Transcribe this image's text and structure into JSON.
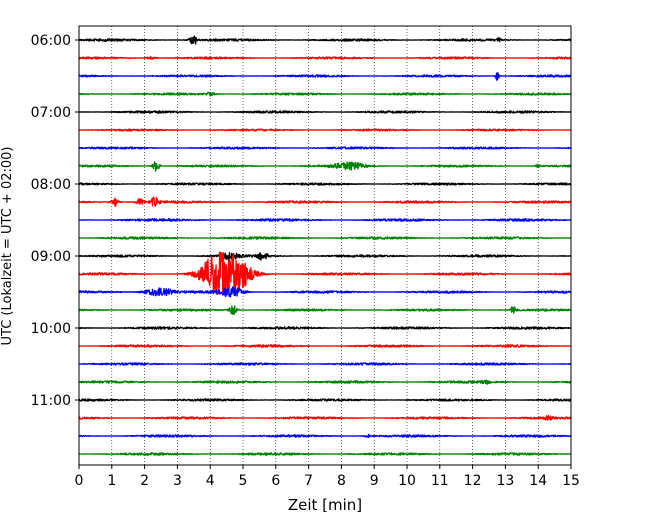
{
  "chart_data": {
    "type": "line",
    "xlabel": "Zeit  [min]",
    "ylabel": "UTC (Lokalzeit = UTC + 02:00)",
    "xlim": [
      0,
      15
    ],
    "x_ticks": [
      0,
      1,
      2,
      3,
      4,
      5,
      6,
      7,
      8,
      9,
      10,
      11,
      12,
      13,
      14,
      15
    ],
    "x_tick_labels": [
      "0",
      "1",
      "2",
      "3",
      "4",
      "5",
      "6",
      "7",
      "8",
      "9",
      "10",
      "11",
      "12",
      "13",
      "14",
      "15"
    ],
    "grid": {
      "x": true,
      "style": "dotted"
    },
    "y_tick_labels": [
      "06:00",
      "07:00",
      "08:00",
      "09:00",
      "10:00",
      "11:00"
    ],
    "trace_interval_minutes": 15,
    "first_trace_start": "06:00",
    "color_cycle": [
      "#000000",
      "#ff0000",
      "#0000ff",
      "#008000"
    ],
    "series": [
      {
        "start": "06:00",
        "color": "#000000",
        "noise": 0.55,
        "events": [
          {
            "x": 3.5,
            "amp": 5,
            "dur": 0.12
          },
          {
            "x": 12.8,
            "amp": 1.6,
            "dur": 0.06
          }
        ]
      },
      {
        "start": "06:15",
        "color": "#ff0000",
        "noise": 0.5,
        "events": [
          {
            "x": 2.2,
            "amp": 1.5,
            "dur": 0.15
          }
        ]
      },
      {
        "start": "06:30",
        "color": "#0000ff",
        "noise": 0.5,
        "events": [
          {
            "x": 12.75,
            "amp": 5.5,
            "dur": 0.05
          }
        ]
      },
      {
        "start": "06:45",
        "color": "#008000",
        "noise": 0.5,
        "events": [
          {
            "x": 4.0,
            "amp": 1.5,
            "dur": 0.15
          }
        ]
      },
      {
        "start": "07:00",
        "color": "#000000",
        "noise": 0.55,
        "events": []
      },
      {
        "start": "07:15",
        "color": "#ff0000",
        "noise": 0.45,
        "events": []
      },
      {
        "start": "07:30",
        "color": "#0000ff",
        "noise": 0.5,
        "events": []
      },
      {
        "start": "07:45",
        "color": "#008000",
        "noise": 0.5,
        "events": [
          {
            "x": 2.35,
            "amp": 5.5,
            "dur": 0.1
          },
          {
            "x": 8.25,
            "amp": 3.2,
            "dur": 0.45
          },
          {
            "x": 14.0,
            "amp": 1.5,
            "dur": 0.08
          }
        ]
      },
      {
        "start": "08:00",
        "color": "#000000",
        "noise": 0.5,
        "events": []
      },
      {
        "start": "08:15",
        "color": "#ff0000",
        "noise": 0.55,
        "events": [
          {
            "x": 1.1,
            "amp": 4.5,
            "dur": 0.12
          },
          {
            "x": 1.85,
            "amp": 3,
            "dur": 0.12
          },
          {
            "x": 2.3,
            "amp": 4.5,
            "dur": 0.12
          }
        ]
      },
      {
        "start": "08:30",
        "color": "#0000ff",
        "noise": 0.6,
        "events": []
      },
      {
        "start": "08:45",
        "color": "#008000",
        "noise": 0.55,
        "events": []
      },
      {
        "start": "09:00",
        "color": "#000000",
        "noise": 0.55,
        "events": [
          {
            "x": 4.6,
            "amp": 3.2,
            "dur": 0.25
          },
          {
            "x": 5.6,
            "amp": 4,
            "dur": 0.15
          }
        ]
      },
      {
        "start": "09:15",
        "color": "#ff0000",
        "noise": 0.55,
        "events": [
          {
            "x": 4.1,
            "amp": 13,
            "dur": 0.45
          },
          {
            "x": 4.7,
            "amp": 17,
            "dur": 0.55
          }
        ]
      },
      {
        "start": "09:30",
        "color": "#0000ff",
        "noise": 0.55,
        "events": [
          {
            "x": 2.45,
            "amp": 4,
            "dur": 0.45
          },
          {
            "x": 4.65,
            "amp": 5,
            "dur": 0.35
          }
        ]
      },
      {
        "start": "09:45",
        "color": "#008000",
        "noise": 0.5,
        "events": [
          {
            "x": 4.7,
            "amp": 5,
            "dur": 0.12
          },
          {
            "x": 13.25,
            "amp": 4,
            "dur": 0.08
          }
        ]
      },
      {
        "start": "10:00",
        "color": "#000000",
        "noise": 0.55,
        "events": []
      },
      {
        "start": "10:15",
        "color": "#ff0000",
        "noise": 0.55,
        "events": []
      },
      {
        "start": "10:30",
        "color": "#0000ff",
        "noise": 0.55,
        "events": []
      },
      {
        "start": "10:45",
        "color": "#008000",
        "noise": 0.55,
        "events": [
          {
            "x": 12.4,
            "amp": 1.5,
            "dur": 0.1
          }
        ]
      },
      {
        "start": "11:00",
        "color": "#000000",
        "noise": 0.5,
        "events": []
      },
      {
        "start": "11:15",
        "color": "#ff0000",
        "noise": 0.55,
        "events": [
          {
            "x": 14.3,
            "amp": 1.6,
            "dur": 0.1
          }
        ]
      },
      {
        "start": "11:30",
        "color": "#0000ff",
        "noise": 0.55,
        "events": [
          {
            "x": 8.8,
            "amp": 1.5,
            "dur": 0.08
          }
        ]
      },
      {
        "start": "11:45",
        "color": "#008000",
        "noise": 0.55,
        "events": []
      }
    ]
  }
}
